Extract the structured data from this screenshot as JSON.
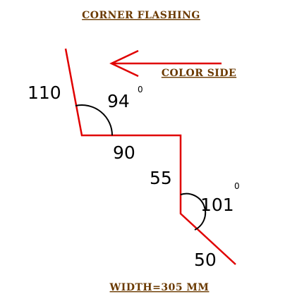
{
  "title": "CORNER  FLASHING",
  "color_side_label": "COLOR  SIDE",
  "width_label": "WIDTH=305  MM",
  "dimensions": {
    "top_leg": "110",
    "top_angle": "94",
    "middle_horizontal": "90",
    "vertical": "55",
    "bottom_angle": "101",
    "bottom_leg": "50"
  },
  "degree_symbol": "0",
  "colors": {
    "profile_line": "#e00000",
    "label_text": "#6b3a00",
    "dimension_text": "#000000",
    "arc": "#000000"
  }
}
